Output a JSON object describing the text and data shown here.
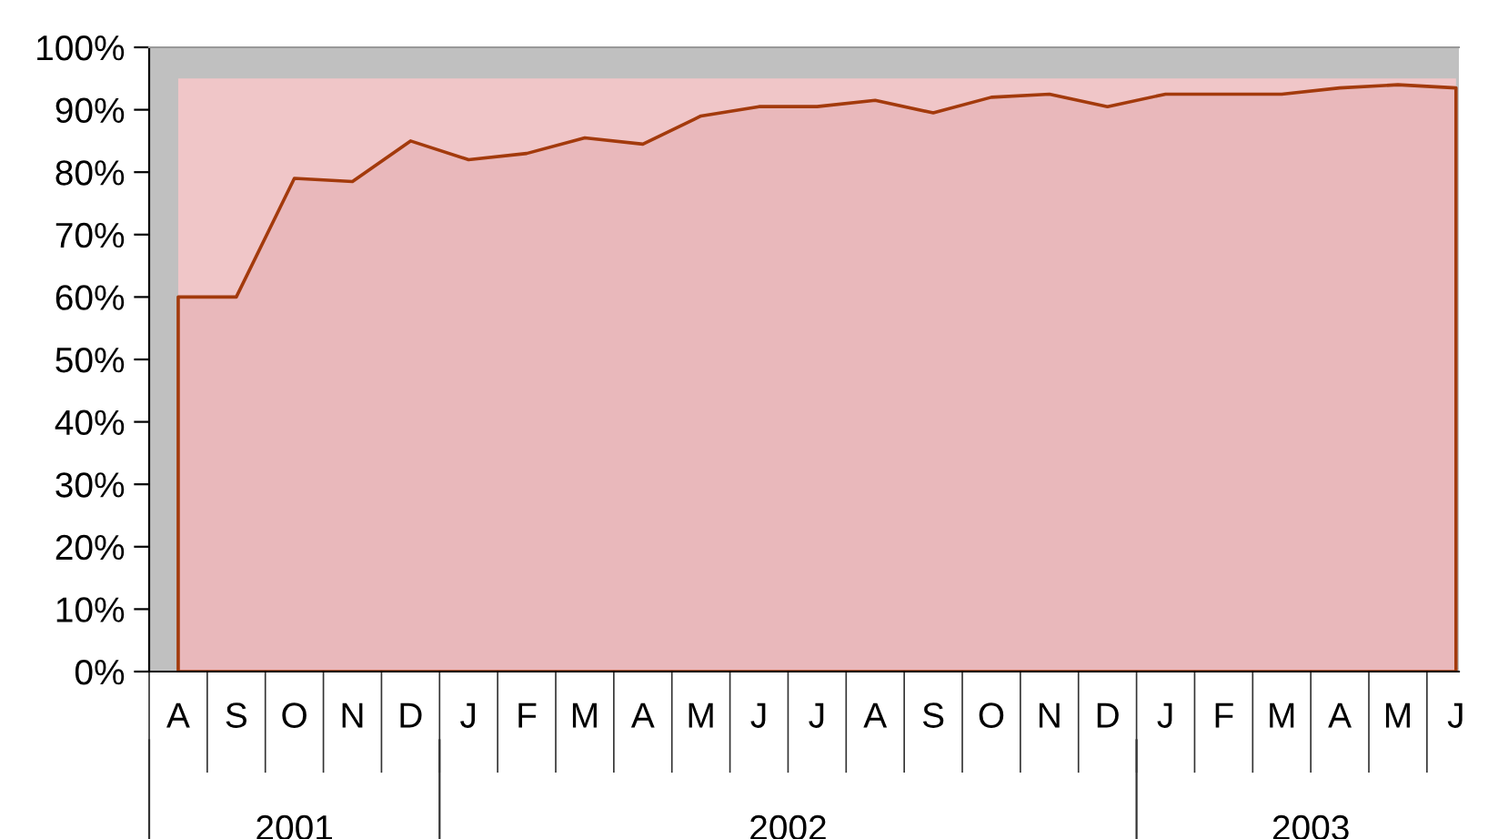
{
  "chart_data": {
    "type": "area",
    "categories": [
      "A",
      "S",
      "O",
      "N",
      "D",
      "J",
      "F",
      "M",
      "A",
      "M",
      "J",
      "J",
      "A",
      "S",
      "O",
      "N",
      "D",
      "J",
      "F",
      "M",
      "A",
      "M",
      "J"
    ],
    "series": [
      {
        "color": "#a33a0c",
        "values": [
          60,
          60,
          79,
          78.5,
          85,
          82,
          83,
          85.5,
          84.5,
          89,
          90.5,
          90.5,
          91.5,
          89.5,
          92,
          92.5,
          90.5,
          92.5,
          92.5,
          92.5,
          93.5,
          94,
          93.5
        ]
      }
    ],
    "bands": [
      {
        "axis": "y",
        "from": 0,
        "to": 95,
        "color": "#f0c6c8"
      }
    ],
    "ylim": [
      0,
      100
    ],
    "yticks": [
      {
        "value": 0,
        "label": "0%"
      },
      {
        "value": 10,
        "label": "10%"
      },
      {
        "value": 20,
        "label": "20%"
      },
      {
        "value": 30,
        "label": "30%"
      },
      {
        "value": 40,
        "label": "40%"
      },
      {
        "value": 50,
        "label": "50%"
      },
      {
        "value": 60,
        "label": "60%"
      },
      {
        "value": 70,
        "label": "70%"
      },
      {
        "value": 80,
        "label": "80%"
      },
      {
        "value": 90,
        "label": "90%"
      },
      {
        "value": 100,
        "label": "100%"
      }
    ],
    "annotations": [
      "2001",
      "2002",
      "2003"
    ],
    "grid": false,
    "legend": false
  }
}
